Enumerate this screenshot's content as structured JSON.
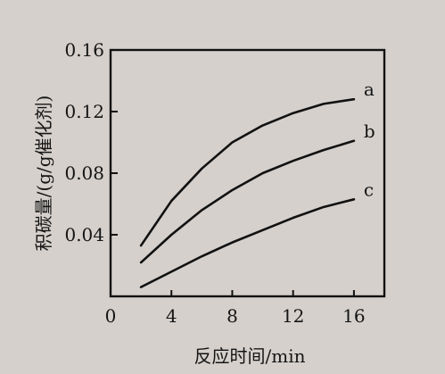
{
  "chart_data": {
    "type": "line",
    "title": "",
    "xlabel": "反应时间/min",
    "ylabel": "积碳量/(g/g催化剂)",
    "xlim": [
      0,
      18
    ],
    "ylim": [
      0,
      0.16
    ],
    "xticks": [
      "0",
      "4",
      "8",
      "12",
      "16"
    ],
    "yticks": [
      "0.04",
      "0.08",
      "0.12",
      "0.16"
    ],
    "grid": false,
    "legend_placement": "",
    "series": [
      {
        "name": "a",
        "x": [
          2,
          4,
          6,
          8,
          10,
          12,
          14,
          16
        ],
        "y": [
          0.033,
          0.062,
          0.083,
          0.1,
          0.111,
          0.119,
          0.125,
          0.128
        ]
      },
      {
        "name": "b",
        "x": [
          2,
          4,
          6,
          8,
          10,
          12,
          14,
          16
        ],
        "y": [
          0.022,
          0.04,
          0.056,
          0.069,
          0.08,
          0.088,
          0.095,
          0.101
        ]
      },
      {
        "name": "c",
        "x": [
          2,
          4,
          6,
          8,
          10,
          12,
          14,
          16
        ],
        "y": [
          0.006,
          0.016,
          0.026,
          0.035,
          0.043,
          0.051,
          0.058,
          0.063
        ]
      }
    ]
  }
}
